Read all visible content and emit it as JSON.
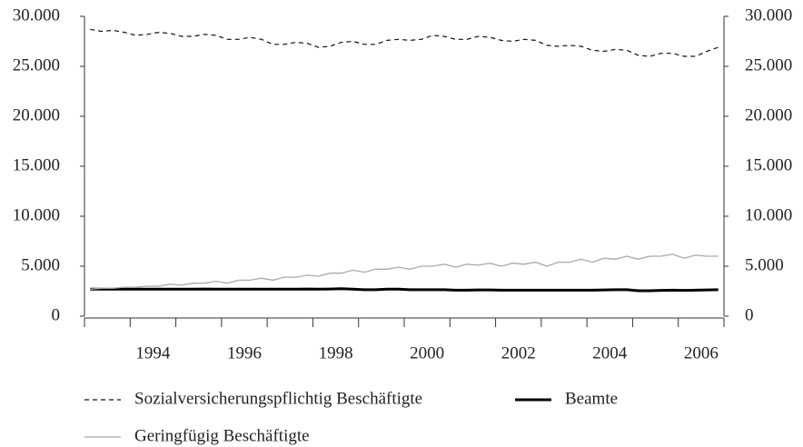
{
  "chart_data": {
    "type": "line",
    "x": [
      1992.625,
      1992.875,
      1993.125,
      1993.375,
      1993.625,
      1993.875,
      1994.125,
      1994.375,
      1994.625,
      1994.875,
      1995.125,
      1995.375,
      1995.625,
      1995.875,
      1996.125,
      1996.375,
      1996.625,
      1996.875,
      1997.125,
      1997.375,
      1997.625,
      1997.875,
      1998.125,
      1998.375,
      1998.625,
      1998.875,
      1999.125,
      1999.375,
      1999.625,
      1999.875,
      2000.125,
      2000.375,
      2000.625,
      2000.875,
      2001.125,
      2001.375,
      2001.625,
      2001.875,
      2002.125,
      2002.375,
      2002.625,
      2002.875,
      2003.125,
      2003.375,
      2003.625,
      2003.875,
      2004.125,
      2004.375,
      2004.625,
      2004.875,
      2005.125,
      2005.375,
      2005.625,
      2005.875,
      2006.125,
      2006.375
    ],
    "series": [
      {
        "name": "Sozialversicherungspflichtig Beschäftigte",
        "color": "#111111",
        "line_style": "dashed",
        "values": [
          28700,
          28500,
          28600,
          28400,
          28100,
          28200,
          28400,
          28300,
          28000,
          28000,
          28200,
          28100,
          27700,
          27700,
          27900,
          27700,
          27200,
          27200,
          27400,
          27300,
          26900,
          27000,
          27400,
          27500,
          27200,
          27200,
          27600,
          27700,
          27600,
          27700,
          28100,
          28000,
          27700,
          27700,
          28000,
          27900,
          27600,
          27500,
          27700,
          27600,
          27100,
          27000,
          27100,
          27000,
          26600,
          26500,
          26700,
          26600,
          26100,
          26000,
          26300,
          26300,
          26000,
          26000,
          26500,
          26900
        ]
      },
      {
        "name": "Beamte",
        "color": "#000000",
        "line_style": "solid",
        "values": [
          2700,
          2700,
          2700,
          2700,
          2700,
          2700,
          2700,
          2700,
          2700,
          2700,
          2720,
          2700,
          2700,
          2700,
          2700,
          2700,
          2700,
          2700,
          2700,
          2720,
          2700,
          2720,
          2750,
          2700,
          2650,
          2650,
          2700,
          2700,
          2650,
          2650,
          2650,
          2650,
          2600,
          2600,
          2620,
          2620,
          2600,
          2600,
          2600,
          2600,
          2600,
          2600,
          2600,
          2600,
          2600,
          2620,
          2650,
          2650,
          2550,
          2550,
          2580,
          2600,
          2580,
          2600,
          2620,
          2650
        ]
      },
      {
        "name": "Geringfügig Beschäftigte",
        "color": "#aaaaaa",
        "line_style": "solid",
        "values": [
          2700,
          2800,
          2800,
          2900,
          2900,
          3000,
          3000,
          3200,
          3100,
          3300,
          3300,
          3500,
          3300,
          3600,
          3600,
          3800,
          3600,
          3900,
          3900,
          4100,
          4000,
          4300,
          4300,
          4600,
          4400,
          4700,
          4700,
          4900,
          4700,
          5000,
          5000,
          5200,
          4900,
          5200,
          5100,
          5300,
          5000,
          5300,
          5200,
          5400,
          5000,
          5400,
          5400,
          5700,
          5400,
          5800,
          5700,
          6000,
          5700,
          6000,
          6000,
          6200,
          5800,
          6100,
          6000,
          6000
        ]
      }
    ],
    "xlim": [
      1992.5,
      2006.5
    ],
    "xticks": [
      1994,
      1996,
      1998,
      2000,
      2002,
      2004,
      2006
    ],
    "xminor_ticks": [
      1992.5,
      1993.5,
      1994.5,
      1995.5,
      1996.5,
      1997.5,
      1998.5,
      1999.5,
      2000.5,
      2001.5,
      2002.5,
      2003.5,
      2004.5,
      2005.5,
      2006.5
    ],
    "ylim": [
      0,
      30000
    ],
    "yticks": [
      0,
      {
        "value": 5000,
        "label": "5.000"
      },
      {
        "value": 10000,
        "label": "10.000"
      },
      {
        "value": 15000,
        "label": "15.000"
      },
      {
        "value": 20000,
        "label": "20.000"
      },
      {
        "value": 25000,
        "label": "25.000"
      },
      {
        "value": 30000,
        "label": "30.000"
      }
    ],
    "y2lim": [
      0,
      30000
    ],
    "y2ticks": [
      0,
      {
        "value": 5000,
        "label": "5.000"
      },
      {
        "value": 10000,
        "label": "10.000"
      },
      {
        "value": 15000,
        "label": "15.000"
      },
      {
        "value": 20000,
        "label": "20.000"
      },
      {
        "value": 25000,
        "label": "25.000"
      },
      {
        "value": 30000,
        "label": "30.000"
      }
    ],
    "legend": "bottom"
  }
}
